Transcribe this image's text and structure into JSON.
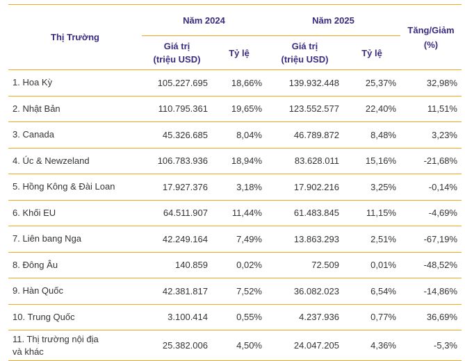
{
  "header": {
    "market": "Thị Trường",
    "year_2024": "Năm 2024",
    "year_2025": "Năm 2025",
    "change_line1": "Tăng/Giảm",
    "change_line2": "(%)",
    "value_line1": "Giá trị",
    "value_line2": "(triệu USD)",
    "ratio": "Tỷ lệ"
  },
  "rows": [
    {
      "market": "1. Hoa Kỳ",
      "v2024": "105.227.695",
      "r2024": "18,66%",
      "v2025": "139.932.448",
      "r2025": "25,37%",
      "change": "32,98%"
    },
    {
      "market": "2. Nhật Bản",
      "v2024": "110.795.361",
      "r2024": "19,65%",
      "v2025": "123.552.577",
      "r2025": "22,40%",
      "change": "11,51%"
    },
    {
      "market": "3. Canada",
      "v2024": "45.326.685",
      "r2024": "8,04%",
      "v2025": "46.789.872",
      "r2025": "8,48%",
      "change": "3,23%"
    },
    {
      "market": "4. Úc & Newzeland",
      "v2024": "106.783.936",
      "r2024": "18,94%",
      "v2025": "83.628.011",
      "r2025": "15,16%",
      "change": "-21,68%"
    },
    {
      "market": "5. Hồng Kông & Đài Loan",
      "v2024": "17.927.376",
      "r2024": "3,18%",
      "v2025": "17.902.216",
      "r2025": "3,25%",
      "change": "-0,14%"
    },
    {
      "market": "6. Khối EU",
      "v2024": "64.511.907",
      "r2024": "11,44%",
      "v2025": "61.483.845",
      "r2025": "11,15%",
      "change": "-4,69%"
    },
    {
      "market": "7. Liên bang Nga",
      "v2024": "42.249.164",
      "r2024": "7,49%",
      "v2025": "13.863.293",
      "r2025": "2,51%",
      "change": "-67,19%"
    },
    {
      "market": "8. Đông Âu",
      "v2024": "140.859",
      "r2024": "0,02%",
      "v2025": "72.509",
      "r2025": "0,01%",
      "change": "-48,52%"
    },
    {
      "market": "9. Hàn Quốc",
      "v2024": "42.381.817",
      "r2024": "7,52%",
      "v2025": "36.082.023",
      "r2025": "6,54%",
      "change": "-14,86%"
    },
    {
      "market": "10. Trung Quốc",
      "v2024": "3.100.414",
      "r2024": "0,55%",
      "v2025": "4.237.936",
      "r2025": "0,77%",
      "change": "36,69%"
    }
  ],
  "last_row": {
    "market_line1": "11. Thị trường nội địa",
    "market_line2": "và khác",
    "v2024": "25.382.006",
    "r2024": "4,50%",
    "v2025": "24.047.205",
    "r2025": "4,36%",
    "change": "-5,3%"
  }
}
